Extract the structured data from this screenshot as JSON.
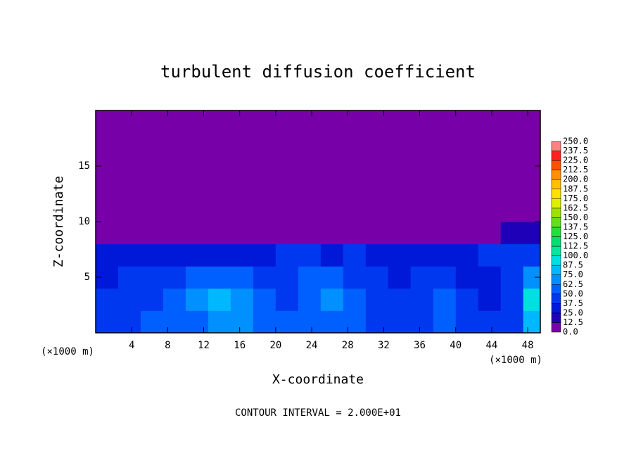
{
  "chart_data": {
    "type": "heatmap",
    "title": "turbulent diffusion coefficient",
    "x_label": "X-coordinate",
    "y_label": "Z-coordinate",
    "x_unit": "(×1000 m)",
    "x_unit_right": "(×1000 m)",
    "footer": "CONTOUR INTERVAL = 2.000E+01",
    "xlim": [
      0,
      49.4
    ],
    "ylim": [
      0,
      20
    ],
    "xticks": [
      4,
      8,
      12,
      16,
      20,
      24,
      28,
      32,
      36,
      40,
      44,
      48
    ],
    "yticks": [
      5,
      10,
      15
    ],
    "x_bins": [
      0,
      2.5,
      5,
      7.5,
      10,
      12.5,
      15,
      17.5,
      20,
      22.5,
      25,
      27.5,
      30,
      32.5,
      35,
      37.5,
      40,
      42.5,
      45,
      47.5,
      50
    ],
    "y_bins": [
      0,
      2,
      4,
      6,
      8,
      10,
      20
    ],
    "z": [
      [
        40,
        45,
        50,
        55,
        60,
        70,
        65,
        60,
        55,
        50,
        60,
        55,
        45,
        40,
        45,
        50,
        45,
        40,
        45,
        80
      ],
      [
        40,
        40,
        45,
        60,
        70,
        75,
        65,
        50,
        45,
        55,
        65,
        55,
        40,
        40,
        45,
        50,
        40,
        35,
        40,
        90
      ],
      [
        35,
        38,
        40,
        45,
        50,
        55,
        50,
        40,
        45,
        50,
        50,
        45,
        40,
        35,
        45,
        40,
        35,
        35,
        40,
        70
      ],
      [
        30,
        25,
        35,
        30,
        35,
        30,
        25,
        30,
        40,
        40,
        35,
        40,
        30,
        25,
        35,
        30,
        30,
        40,
        40,
        45
      ],
      [
        5,
        5,
        5,
        5,
        5,
        5,
        5,
        5,
        5,
        5,
        5,
        5,
        5,
        5,
        5,
        5,
        5,
        5,
        15,
        20
      ],
      [
        5,
        5,
        5,
        5,
        5,
        5,
        5,
        5,
        5,
        5,
        5,
        5,
        5,
        5,
        5,
        5,
        5,
        5,
        5,
        5
      ]
    ],
    "levels": [
      {
        "value": 0,
        "label": "0.0"
      },
      {
        "value": 12.5,
        "label": "12.5"
      },
      {
        "value": 25,
        "label": "25.0"
      },
      {
        "value": 37.5,
        "label": "37.5"
      },
      {
        "value": 50,
        "label": "50.0"
      },
      {
        "value": 62.5,
        "label": "62.5"
      },
      {
        "value": 75,
        "label": "75.0"
      },
      {
        "value": 87.5,
        "label": "87.5"
      },
      {
        "value": 100,
        "label": "100.0"
      },
      {
        "value": 112.5,
        "label": "112.5"
      },
      {
        "value": 125,
        "label": "125.0"
      },
      {
        "value": 137.5,
        "label": "137.5"
      },
      {
        "value": 150,
        "label": "150.0"
      },
      {
        "value": 162.5,
        "label": "162.5"
      },
      {
        "value": 175,
        "label": "175.0"
      },
      {
        "value": 187.5,
        "label": "187.5"
      },
      {
        "value": 200,
        "label": "200.0"
      },
      {
        "value": 212.5,
        "label": "212.5"
      },
      {
        "value": 225,
        "label": "225.0"
      },
      {
        "value": 237.5,
        "label": "237.5"
      },
      {
        "value": 250,
        "label": "250.0"
      }
    ],
    "colors": [
      "#7800a8",
      "#1e00b8",
      "#0018d8",
      "#0038f0",
      "#0060ff",
      "#0090ff",
      "#00b8ff",
      "#00e0e0",
      "#00e8a0",
      "#00e070",
      "#20e040",
      "#60e020",
      "#a0e000",
      "#e0f000",
      "#ffe000",
      "#ffc000",
      "#ff9000",
      "#ff5000",
      "#ff2020",
      "#ff8080"
    ]
  }
}
